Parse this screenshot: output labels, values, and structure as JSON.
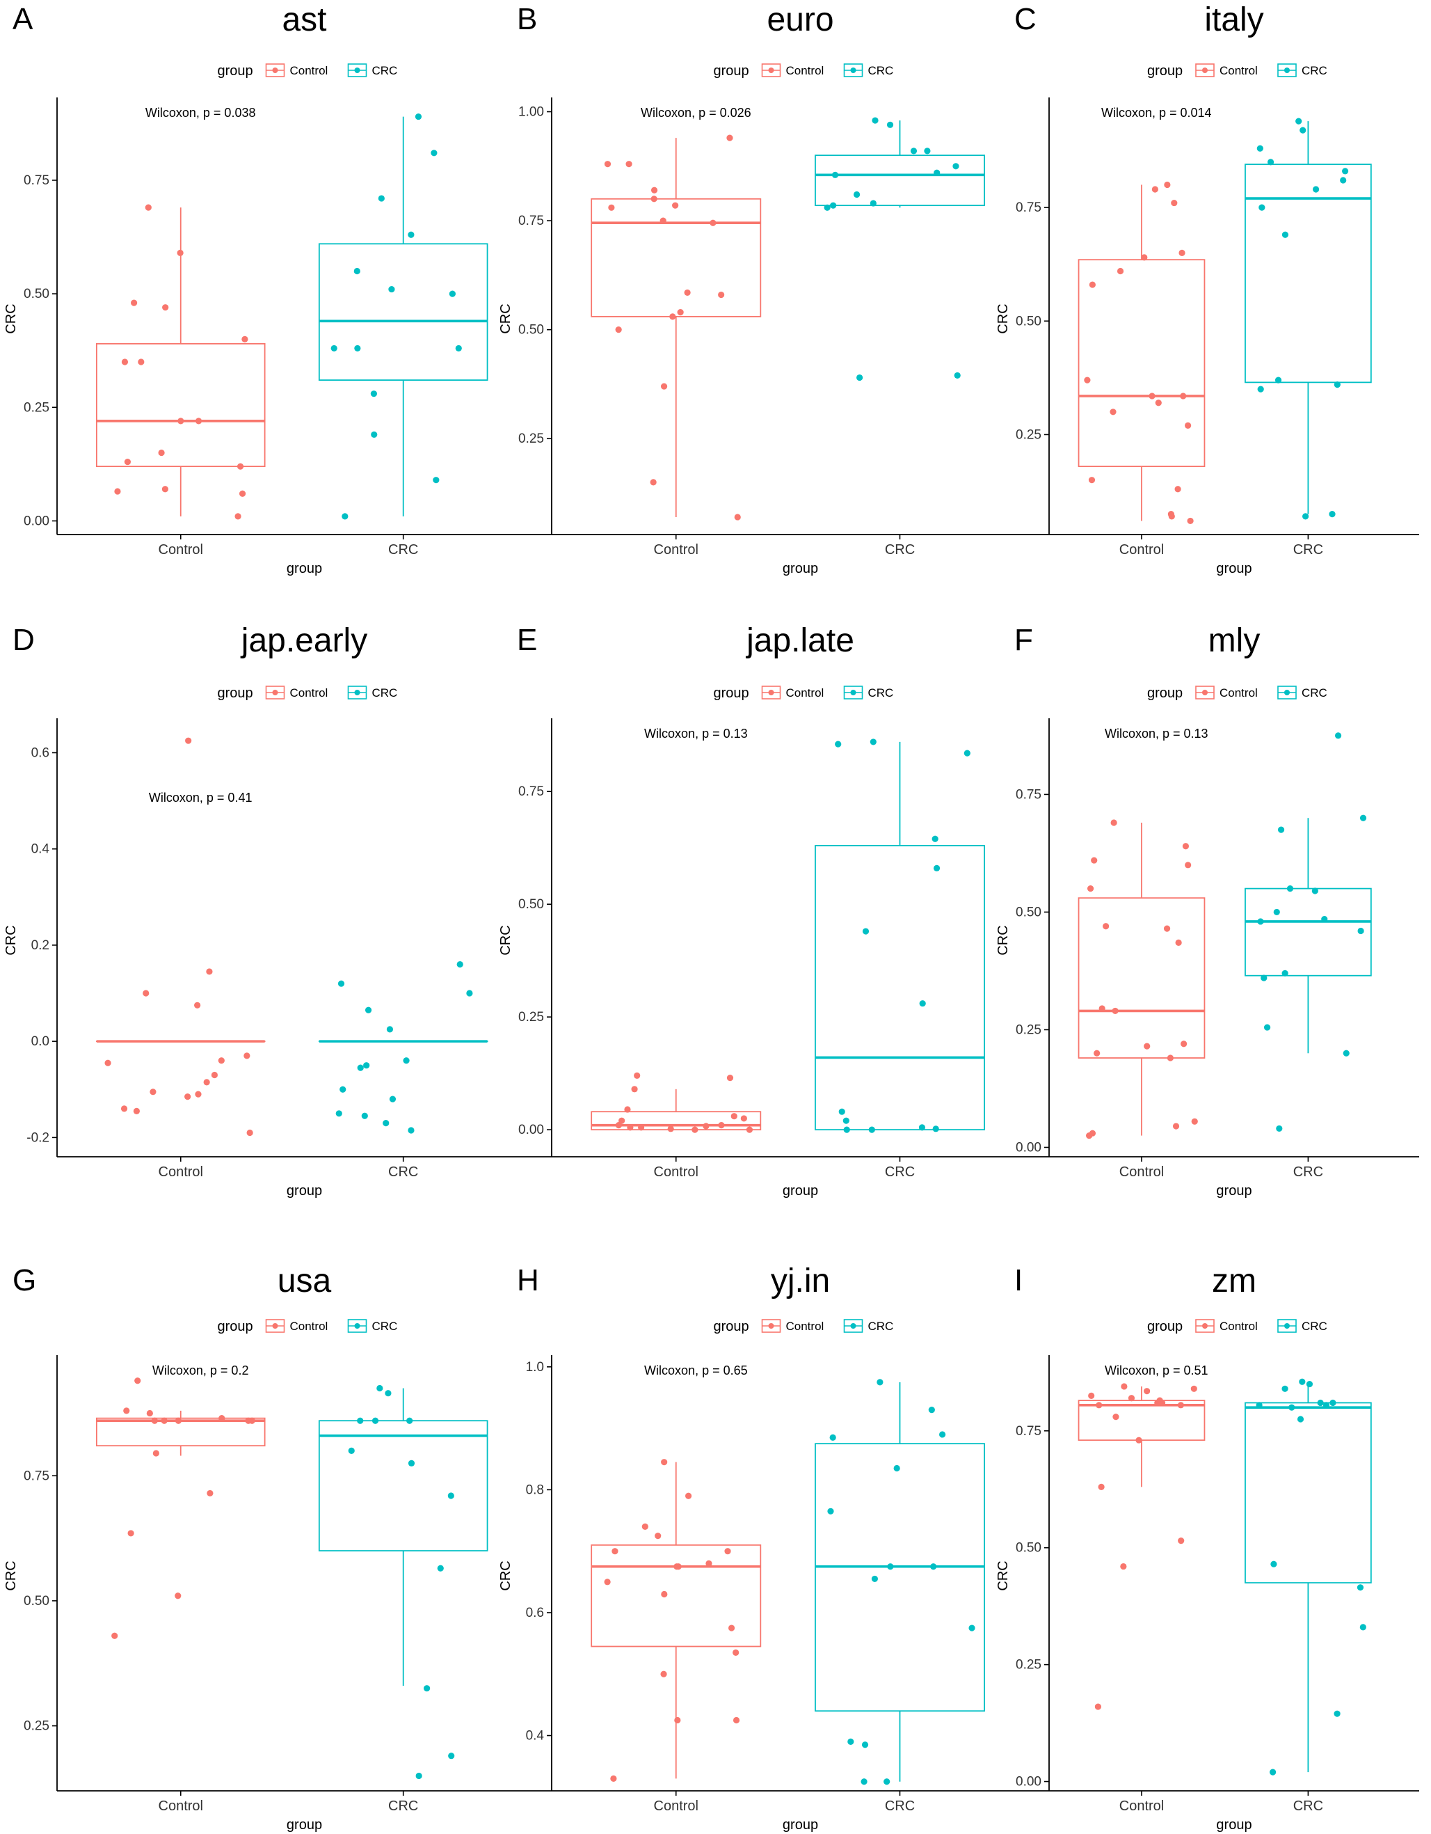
{
  "legend": {
    "title": "group",
    "items": [
      {
        "label": "Control",
        "color": "#F8766D"
      },
      {
        "label": "CRC",
        "color": "#00BFC4"
      }
    ]
  },
  "colors": {
    "control": "#F8766D",
    "crc": "#00BFC4",
    "axis": "#000000"
  },
  "chart_data": [
    {
      "letter": "A",
      "title": "ast",
      "type": "boxplot",
      "xlabel": "group",
      "ylabel": "CRC",
      "annotation": "Wilcoxon, p = 0.038",
      "categories": [
        "Control",
        "CRC"
      ],
      "ylim": [
        -0.03,
        0.92
      ],
      "yticks": [
        0.0,
        0.25,
        0.5,
        0.75
      ],
      "ytick_labels": [
        "0.00",
        "0.25",
        "0.50",
        "0.75"
      ],
      "boxes": [
        {
          "name": "Control",
          "q1": 0.12,
          "median": 0.22,
          "q3": 0.39,
          "whisker_low": 0.01,
          "whisker_high": 0.69
        },
        {
          "name": "CRC",
          "q1": 0.31,
          "median": 0.44,
          "q3": 0.61,
          "whisker_low": 0.01,
          "whisker_high": 0.89
        }
      ],
      "points": [
        [
          0.01,
          0.06,
          0.065,
          0.07,
          0.12,
          0.13,
          0.15,
          0.22,
          0.22,
          0.35,
          0.35,
          0.4,
          0.47,
          0.48,
          0.59,
          0.69
        ],
        [
          0.01,
          0.09,
          0.19,
          0.28,
          0.38,
          0.38,
          0.38,
          0.5,
          0.51,
          0.55,
          0.63,
          0.71,
          0.81,
          0.89
        ]
      ]
    },
    {
      "letter": "B",
      "title": "euro",
      "type": "boxplot",
      "xlabel": "group",
      "ylabel": "CRC",
      "annotation": "Wilcoxon, p = 0.026",
      "categories": [
        "Control",
        "CRC"
      ],
      "ylim": [
        0.03,
        1.02
      ],
      "yticks": [
        0.25,
        0.5,
        0.75,
        1.0
      ],
      "ytick_labels": [
        "0.25",
        "0.50",
        "0.75",
        "1.00"
      ],
      "boxes": [
        {
          "name": "Control",
          "q1": 0.53,
          "median": 0.745,
          "q3": 0.8,
          "whisker_low": 0.07,
          "whisker_high": 0.94
        },
        {
          "name": "CRC",
          "q1": 0.785,
          "median": 0.855,
          "q3": 0.9,
          "whisker_low": 0.78,
          "whisker_high": 0.98
        }
      ],
      "points": [
        [
          0.07,
          0.15,
          0.37,
          0.5,
          0.53,
          0.54,
          0.58,
          0.585,
          0.745,
          0.75,
          0.78,
          0.785,
          0.8,
          0.82,
          0.88,
          0.88,
          0.94
        ],
        [
          0.39,
          0.395,
          0.78,
          0.785,
          0.79,
          0.81,
          0.855,
          0.86,
          0.875,
          0.91,
          0.91,
          0.97,
          0.98
        ]
      ]
    },
    {
      "letter": "C",
      "title": "italy",
      "type": "boxplot",
      "xlabel": "group",
      "ylabel": "CRC",
      "annotation": "Wilcoxon, p = 0.014",
      "categories": [
        "Control",
        "CRC"
      ],
      "ylim": [
        0.03,
        0.98
      ],
      "yticks": [
        0.25,
        0.5,
        0.75
      ],
      "ytick_labels": [
        "0.25",
        "0.50",
        "0.75"
      ],
      "boxes": [
        {
          "name": "Control",
          "q1": 0.18,
          "median": 0.335,
          "q3": 0.635,
          "whisker_low": 0.06,
          "whisker_high": 0.8
        },
        {
          "name": "CRC",
          "q1": 0.365,
          "median": 0.77,
          "q3": 0.845,
          "whisker_low": 0.075,
          "whisker_high": 0.94
        }
      ],
      "points": [
        [
          0.06,
          0.07,
          0.075,
          0.13,
          0.15,
          0.27,
          0.3,
          0.32,
          0.335,
          0.335,
          0.37,
          0.58,
          0.61,
          0.64,
          0.65,
          0.76,
          0.79,
          0.8
        ],
        [
          0.07,
          0.075,
          0.35,
          0.36,
          0.37,
          0.69,
          0.75,
          0.79,
          0.81,
          0.83,
          0.85,
          0.88,
          0.92,
          0.94
        ]
      ]
    },
    {
      "letter": "D",
      "title": "jap.early",
      "type": "boxplot",
      "xlabel": "group",
      "ylabel": "CRC",
      "annotation": "Wilcoxon, p = 0.41",
      "categories": [
        "Control",
        "CRC"
      ],
      "ylim": [
        -0.24,
        0.66
      ],
      "yticks": [
        -0.2,
        0.0,
        0.2,
        0.4,
        0.6
      ],
      "ytick_labels": [
        "-0.2",
        "0.0",
        "0.2",
        "0.4",
        "0.6"
      ],
      "boxes": [
        {
          "name": "Control",
          "q1": 0.0,
          "median": 0.0,
          "q3": 0.0,
          "whisker_low": 0.0,
          "whisker_high": 0.0
        },
        {
          "name": "CRC",
          "q1": 0.0,
          "median": 0.0,
          "q3": 0.0,
          "whisker_low": 0.0,
          "whisker_high": 0.0
        }
      ],
      "points": [
        [
          -0.19,
          -0.145,
          -0.14,
          -0.115,
          -0.11,
          -0.105,
          -0.085,
          -0.07,
          -0.045,
          -0.04,
          -0.03,
          0.075,
          0.1,
          0.145,
          0.625
        ],
        [
          -0.185,
          -0.17,
          -0.155,
          -0.15,
          -0.12,
          -0.1,
          -0.055,
          -0.05,
          -0.04,
          0.025,
          0.065,
          0.1,
          0.12,
          0.16
        ]
      ]
    },
    {
      "letter": "E",
      "title": "jap.late",
      "type": "boxplot",
      "xlabel": "group",
      "ylabel": "CRC",
      "annotation": "Wilcoxon, p = 0.13",
      "categories": [
        "Control",
        "CRC"
      ],
      "ylim": [
        -0.06,
        0.9
      ],
      "yticks": [
        0.0,
        0.25,
        0.5,
        0.75
      ],
      "ytick_labels": [
        "0.00",
        "0.25",
        "0.50",
        "0.75"
      ],
      "boxes": [
        {
          "name": "Control",
          "q1": 0.0,
          "median": 0.01,
          "q3": 0.04,
          "whisker_low": 0.0,
          "whisker_high": 0.09
        },
        {
          "name": "CRC",
          "q1": 0.0,
          "median": 0.16,
          "q3": 0.63,
          "whisker_low": 0.0,
          "whisker_high": 0.86
        }
      ],
      "points": [
        [
          0.0,
          0.0,
          0.002,
          0.005,
          0.005,
          0.008,
          0.01,
          0.01,
          0.02,
          0.025,
          0.03,
          0.045,
          0.09,
          0.115,
          0.12
        ],
        [
          0.0,
          0.0,
          0.002,
          0.005,
          0.02,
          0.04,
          0.28,
          0.44,
          0.58,
          0.645,
          0.835,
          0.855,
          0.86
        ]
      ]
    },
    {
      "letter": "F",
      "title": "mly",
      "type": "boxplot",
      "xlabel": "group",
      "ylabel": "CRC",
      "annotation": "Wilcoxon, p = 0.13",
      "categories": [
        "Control",
        "CRC"
      ],
      "ylim": [
        -0.02,
        0.9
      ],
      "yticks": [
        0.0,
        0.25,
        0.5,
        0.75
      ],
      "ytick_labels": [
        "0.00",
        "0.25",
        "0.50",
        "0.75"
      ],
      "boxes": [
        {
          "name": "Control",
          "q1": 0.19,
          "median": 0.29,
          "q3": 0.53,
          "whisker_low": 0.025,
          "whisker_high": 0.69
        },
        {
          "name": "CRC",
          "q1": 0.365,
          "median": 0.48,
          "q3": 0.55,
          "whisker_low": 0.2,
          "whisker_high": 0.7
        }
      ],
      "points": [
        [
          0.025,
          0.03,
          0.045,
          0.055,
          0.19,
          0.2,
          0.215,
          0.22,
          0.29,
          0.295,
          0.435,
          0.465,
          0.47,
          0.55,
          0.6,
          0.61,
          0.64,
          0.69
        ],
        [
          0.04,
          0.2,
          0.255,
          0.36,
          0.37,
          0.46,
          0.48,
          0.485,
          0.5,
          0.545,
          0.55,
          0.675,
          0.7,
          0.875
        ]
      ]
    },
    {
      "letter": "G",
      "title": "usa",
      "type": "boxplot",
      "xlabel": "group",
      "ylabel": "CRC",
      "annotation": "Wilcoxon, p = 0.2",
      "categories": [
        "Control",
        "CRC"
      ],
      "ylim": [
        0.12,
        0.98
      ],
      "yticks": [
        0.25,
        0.5,
        0.75
      ],
      "ytick_labels": [
        "0.25",
        "0.50",
        "0.75"
      ],
      "boxes": [
        {
          "name": "Control",
          "q1": 0.81,
          "median": 0.86,
          "q3": 0.865,
          "whisker_low": 0.79,
          "whisker_high": 0.88
        },
        {
          "name": "CRC",
          "q1": 0.6,
          "median": 0.83,
          "q3": 0.86,
          "whisker_low": 0.33,
          "whisker_high": 0.925
        }
      ],
      "points": [
        [
          0.43,
          0.51,
          0.635,
          0.715,
          0.795,
          0.86,
          0.86,
          0.86,
          0.86,
          0.86,
          0.865,
          0.875,
          0.88,
          0.94
        ],
        [
          0.15,
          0.19,
          0.325,
          0.565,
          0.71,
          0.775,
          0.8,
          0.86,
          0.86,
          0.86,
          0.915,
          0.925
        ]
      ]
    },
    {
      "letter": "H",
      "title": "yj.in",
      "type": "boxplot",
      "xlabel": "group",
      "ylabel": "CRC",
      "annotation": "Wilcoxon, p = 0.65",
      "categories": [
        "Control",
        "CRC"
      ],
      "ylim": [
        0.31,
        1.01
      ],
      "yticks": [
        0.4,
        0.6,
        0.8,
        1.0
      ],
      "ytick_labels": [
        "0.4",
        "0.6",
        "0.8",
        "1.0"
      ],
      "boxes": [
        {
          "name": "Control",
          "q1": 0.545,
          "median": 0.675,
          "q3": 0.71,
          "whisker_low": 0.33,
          "whisker_high": 0.845
        },
        {
          "name": "CRC",
          "q1": 0.44,
          "median": 0.675,
          "q3": 0.875,
          "whisker_low": 0.325,
          "whisker_high": 0.975
        }
      ],
      "points": [
        [
          0.33,
          0.425,
          0.425,
          0.5,
          0.535,
          0.575,
          0.63,
          0.65,
          0.675,
          0.675,
          0.68,
          0.7,
          0.7,
          0.725,
          0.74,
          0.79,
          0.845
        ],
        [
          0.325,
          0.325,
          0.385,
          0.39,
          0.575,
          0.655,
          0.675,
          0.675,
          0.765,
          0.835,
          0.885,
          0.89,
          0.93,
          0.975
        ]
      ]
    },
    {
      "letter": "I",
      "title": "zm",
      "type": "boxplot",
      "xlabel": "group",
      "ylabel": "CRC",
      "annotation": "Wilcoxon, p = 0.51",
      "categories": [
        "Control",
        "CRC"
      ],
      "ylim": [
        -0.02,
        0.9
      ],
      "yticks": [
        0.0,
        0.25,
        0.5,
        0.75
      ],
      "ytick_labels": [
        "0.00",
        "0.25",
        "0.50",
        "0.75"
      ],
      "boxes": [
        {
          "name": "Control",
          "q1": 0.73,
          "median": 0.805,
          "q3": 0.815,
          "whisker_low": 0.63,
          "whisker_high": 0.845
        },
        {
          "name": "CRC",
          "q1": 0.425,
          "median": 0.8,
          "q3": 0.81,
          "whisker_low": 0.02,
          "whisker_high": 0.855
        }
      ],
      "points": [
        [
          0.16,
          0.46,
          0.515,
          0.63,
          0.73,
          0.78,
          0.805,
          0.805,
          0.81,
          0.81,
          0.815,
          0.82,
          0.825,
          0.835,
          0.84,
          0.845
        ],
        [
          0.02,
          0.145,
          0.33,
          0.415,
          0.465,
          0.775,
          0.8,
          0.805,
          0.805,
          0.81,
          0.81,
          0.84,
          0.85,
          0.855
        ]
      ]
    }
  ]
}
